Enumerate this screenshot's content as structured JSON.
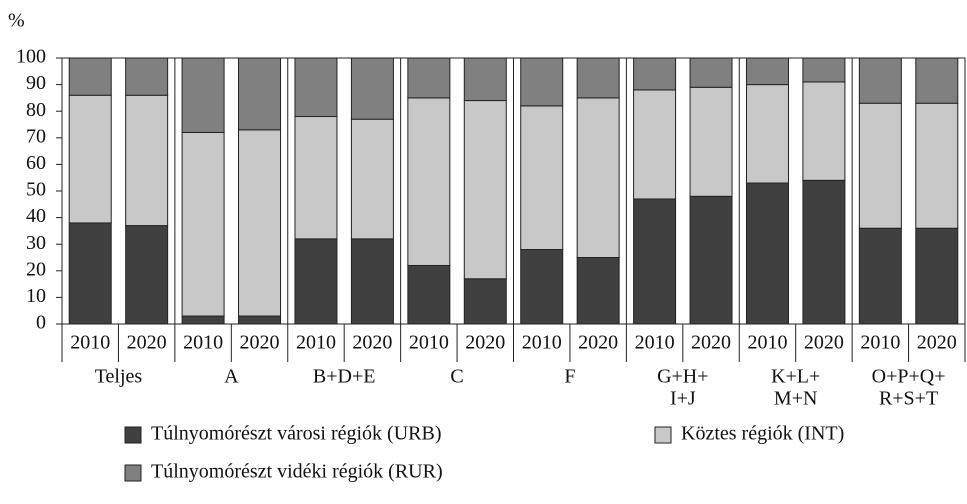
{
  "chart_data": {
    "type": "stacked_bar",
    "y_label": "%",
    "categories": [
      "2010",
      "2020",
      "2010",
      "2020",
      "2010",
      "2020",
      "2010",
      "2020",
      "2010",
      "2020",
      "2010",
      "2020",
      "2010",
      "2020",
      "2010",
      "2020"
    ],
    "groups": [
      [
        "Teljes"
      ],
      [
        "A"
      ],
      [
        "B+D+E"
      ],
      [
        "C"
      ],
      [
        "F"
      ],
      [
        "G+H+",
        "I+J"
      ],
      [
        "K+L+",
        "M+N"
      ],
      [
        "O+P+Q+",
        "R+S+T"
      ]
    ],
    "series": [
      {
        "name": "Túlnyomórészt városi régiók (URB)",
        "color": "#404040",
        "values": [
          38,
          37,
          3,
          3,
          32,
          32,
          22,
          17,
          28,
          25,
          47,
          48,
          53,
          54,
          36,
          36
        ]
      },
      {
        "name": "Köztes régiók (INT)",
        "color": "#c8c8c8",
        "values": [
          48,
          49,
          69,
          70,
          46,
          45,
          63,
          67,
          54,
          60,
          41,
          41,
          37,
          37,
          47,
          47
        ]
      },
      {
        "name": "Túlnyomórészt vidéki régiók (RUR)",
        "color": "#808080",
        "values": [
          14,
          14,
          28,
          27,
          22,
          23,
          15,
          16,
          18,
          15,
          12,
          11,
          10,
          9,
          17,
          17
        ]
      }
    ],
    "ylim": [
      0,
      100
    ],
    "yticks": [
      0,
      10,
      20,
      30,
      40,
      50,
      60,
      70,
      80,
      90,
      100
    ]
  }
}
